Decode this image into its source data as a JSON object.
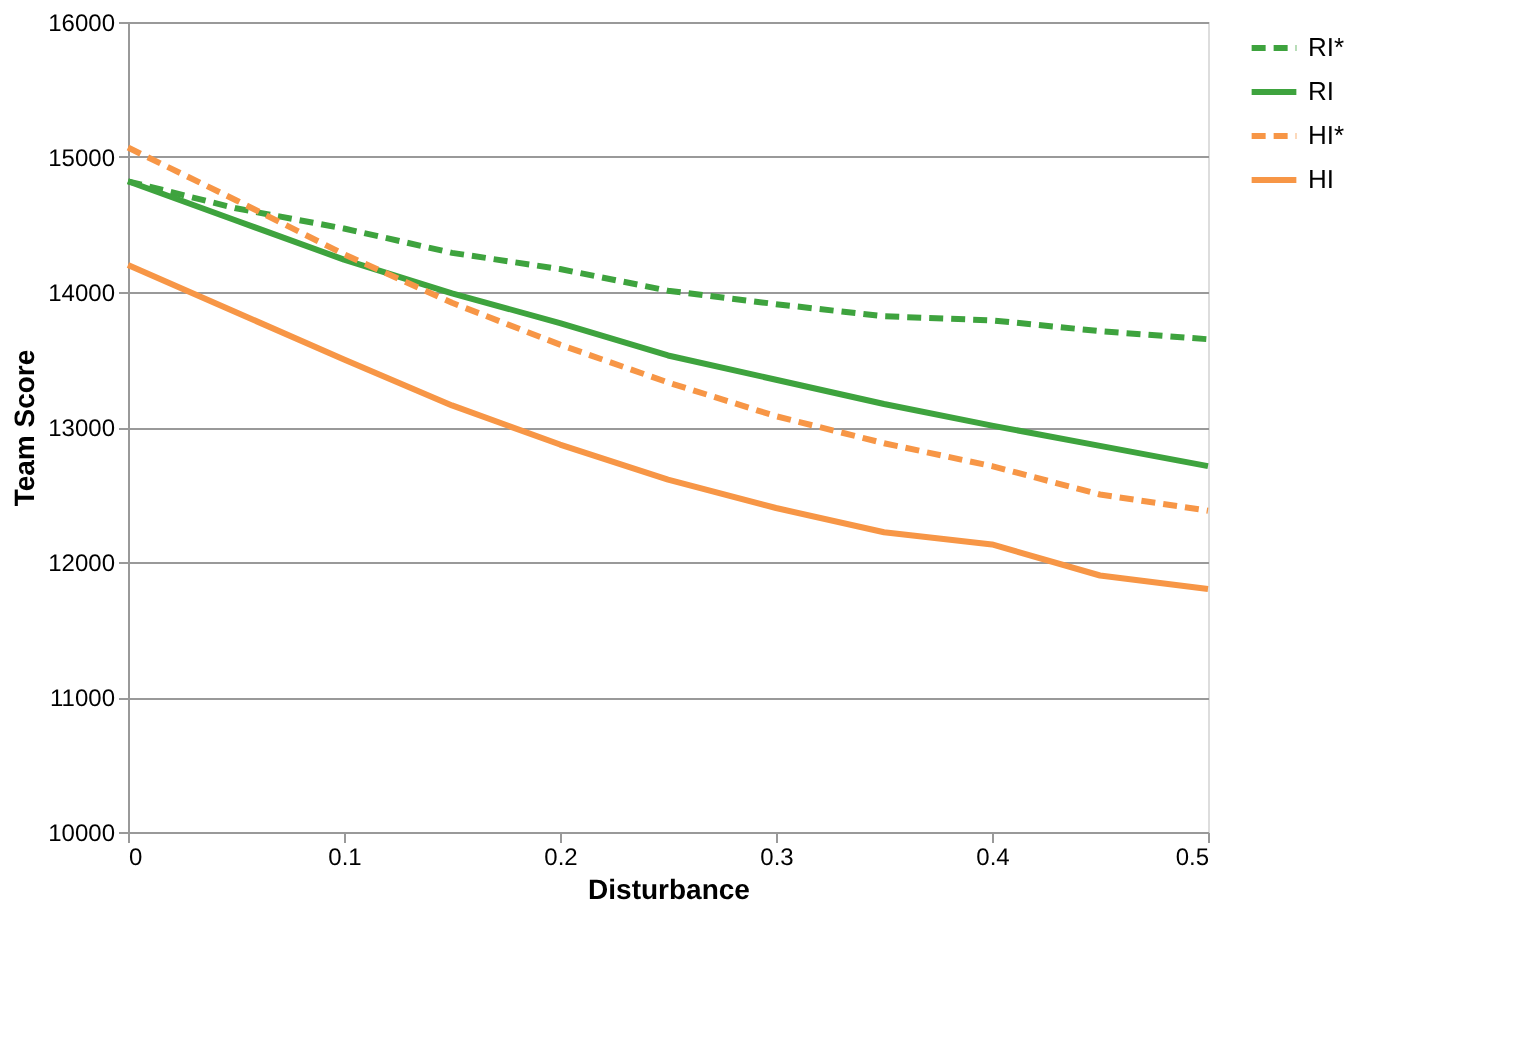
{
  "chart_data": {
    "type": "line",
    "xlabel": "Disturbance",
    "ylabel": "Team Score",
    "x": [
      0,
      0.05,
      0.1,
      0.15,
      0.2,
      0.25,
      0.3,
      0.35,
      0.4,
      0.45,
      0.5
    ],
    "series": [
      {
        "name": "RI*",
        "color": "#3ea33e",
        "line_style": "dashed",
        "values": [
          14820,
          14620,
          14470,
          14290,
          14170,
          14010,
          13910,
          13820,
          13790,
          13710,
          13650
        ]
      },
      {
        "name": "RI",
        "color": "#3ea33e",
        "line_style": "solid",
        "values": [
          14820,
          14530,
          14240,
          13990,
          13770,
          13530,
          13350,
          13170,
          13010,
          12860,
          12710
        ]
      },
      {
        "name": "HI*",
        "color": "#f79646",
        "line_style": "dashed",
        "values": [
          15070,
          14680,
          14280,
          13920,
          13610,
          13330,
          13080,
          12880,
          12710,
          12500,
          12380
        ]
      },
      {
        "name": "HI",
        "color": "#f79646",
        "line_style": "solid",
        "values": [
          14200,
          13850,
          13500,
          13160,
          12870,
          12610,
          12400,
          12220,
          12130,
          11900,
          11800
        ]
      }
    ],
    "xlim": [
      0,
      0.5
    ],
    "xticks": [
      0,
      0.1,
      0.2,
      0.3,
      0.4,
      0.5
    ],
    "ylim": [
      10000,
      16000
    ],
    "yticks": [
      10000,
      11000,
      12000,
      13000,
      14000,
      15000,
      16000
    ],
    "grid": "y",
    "legend": "right",
    "marker": "none"
  }
}
